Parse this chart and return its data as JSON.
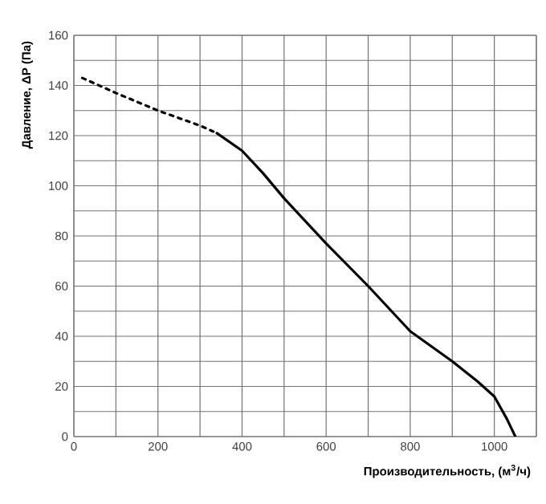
{
  "chart_data": {
    "type": "line",
    "xlabel": "Производительность, (м$^{3}$/ч)",
    "ylabel": "Давление, ΔP (Па)",
    "xlim": [
      0,
      1100
    ],
    "ylim": [
      0,
      160
    ],
    "xticks": [
      0,
      {
        "value": 100,
        "label": null
      },
      200,
      {
        "value": 300,
        "label": null
      },
      400,
      {
        "value": 500,
        "label": null
      },
      600,
      {
        "value": 700,
        "label": null
      },
      800,
      {
        "value": 900,
        "label": null
      },
      1000,
      {
        "value": 1100,
        "label": null
      }
    ],
    "yticks": [
      0,
      {
        "value": 10,
        "label": null
      },
      20,
      {
        "value": 30,
        "label": null
      },
      40,
      {
        "value": 50,
        "label": null
      },
      60,
      {
        "value": 70,
        "label": null
      },
      80,
      {
        "value": 90,
        "label": null
      },
      100,
      {
        "value": 110,
        "label": null
      },
      120,
      {
        "value": 130,
        "label": null
      },
      140,
      {
        "value": 150,
        "label": null
      },
      160
    ],
    "grid": true,
    "series": [
      {
        "color": "#000000",
        "line_style": "dotted",
        "x": [
          20,
          100,
          200,
          300,
          340
        ],
        "values": [
          143,
          137,
          130,
          124,
          121
        ]
      },
      {
        "color": "#000000",
        "line_style": "solid",
        "x": [
          340,
          400,
          450,
          500,
          600,
          700,
          800,
          900,
          960,
          1000,
          1030,
          1050
        ],
        "values": [
          121,
          114,
          105,
          95,
          77,
          60,
          42,
          30,
          22,
          16,
          7,
          0
        ]
      }
    ]
  }
}
